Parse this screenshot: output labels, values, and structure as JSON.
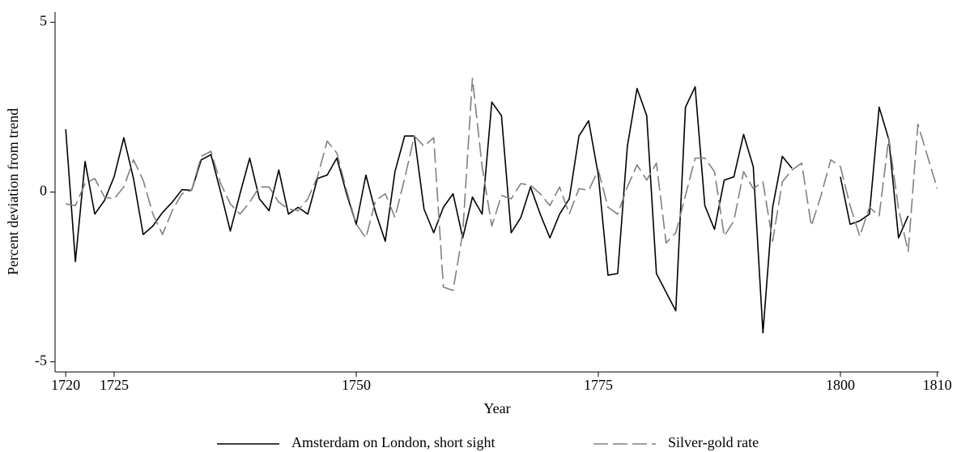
{
  "chart_data": {
    "type": "line",
    "y_label": "Percent deviation from trend",
    "x_label": "Year",
    "x": [
      1720,
      1721,
      1722,
      1723,
      1724,
      1725,
      1726,
      1727,
      1728,
      1729,
      1730,
      1731,
      1732,
      1733,
      1734,
      1735,
      1736,
      1737,
      1738,
      1739,
      1740,
      1741,
      1742,
      1743,
      1744,
      1745,
      1746,
      1747,
      1748,
      1749,
      1750,
      1751,
      1752,
      1753,
      1754,
      1755,
      1756,
      1757,
      1758,
      1759,
      1760,
      1761,
      1762,
      1763,
      1764,
      1765,
      1766,
      1767,
      1768,
      1769,
      1770,
      1771,
      1772,
      1773,
      1774,
      1775,
      1776,
      1777,
      1778,
      1779,
      1780,
      1781,
      1782,
      1783,
      1784,
      1785,
      1786,
      1787,
      1788,
      1789,
      1790,
      1791,
      1792,
      1793,
      1794,
      1795,
      1796,
      1797,
      1798,
      1799,
      1800,
      1801,
      1802,
      1803,
      1804,
      1805,
      1806,
      1807,
      1808,
      1809,
      1810
    ],
    "series": [
      {
        "name": "Amsterdam on London, short sight",
        "color": "#000000",
        "dash": false,
        "values": [
          1.85,
          -2.05,
          0.9,
          -0.65,
          -0.25,
          0.45,
          1.6,
          0.4,
          -1.25,
          -1.0,
          -0.6,
          -0.3,
          0.07,
          0.05,
          0.95,
          1.1,
          0,
          -1.15,
          -0.05,
          1.0,
          -0.2,
          -0.55,
          0.65,
          -0.65,
          -0.45,
          -0.65,
          0.4,
          0.5,
          1.0,
          -0.05,
          -0.95,
          0.5,
          -0.6,
          -1.45,
          0.6,
          1.65,
          1.65,
          -0.5,
          -1.2,
          -0.45,
          -0.05,
          -1.35,
          -0.15,
          -0.65,
          2.65,
          2.25,
          -1.2,
          -0.75,
          0.15,
          -0.65,
          -1.35,
          -0.65,
          -0.2,
          1.65,
          2.1,
          0.5,
          -2.45,
          -2.4,
          1.35,
          3.05,
          2.25,
          -2.4,
          -2.95,
          -3.5,
          2.5,
          3.1,
          -0.4,
          -1.1,
          0.35,
          0.45,
          1.7,
          0.75,
          -4.15,
          -0.45,
          1.05,
          0.7,
          null,
          null,
          null,
          null,
          0.45,
          -0.95,
          -0.85,
          -0.65,
          2.5,
          1.55,
          -1.35,
          -0.7,
          null,
          null,
          null
        ]
      },
      {
        "name": "Silver-gold rate",
        "color": "#808080",
        "dash": true,
        "values": [
          -0.35,
          -0.4,
          0.25,
          0.4,
          -0.15,
          -0.2,
          0.15,
          0.95,
          0.35,
          -0.65,
          -1.25,
          -0.55,
          -0.05,
          0.05,
          1.05,
          1.2,
          0.25,
          -0.35,
          -0.65,
          -0.3,
          0.15,
          0.15,
          -0.3,
          -0.5,
          -0.55,
          -0.2,
          0.45,
          1.5,
          1.15,
          0.05,
          -0.95,
          -1.35,
          -0.25,
          -0.05,
          -0.75,
          0.4,
          1.65,
          1.35,
          1.6,
          -2.8,
          -2.9,
          -1.2,
          3.35,
          0.75,
          -1.0,
          -0.1,
          -0.2,
          0.25,
          0.2,
          -0.05,
          -0.4,
          0.15,
          -0.65,
          0.1,
          0.05,
          0.65,
          -0.45,
          -0.65,
          0.15,
          0.8,
          0.35,
          0.85,
          -1.5,
          -1.2,
          -0.1,
          1.0,
          1.0,
          0.6,
          -1.3,
          -0.85,
          0.6,
          0.1,
          0.3,
          -1.45,
          0.3,
          0.65,
          0.85,
          -1.0,
          -0.1,
          0.95,
          0.75,
          -0.4,
          -1.3,
          -0.45,
          -0.7,
          1.6,
          -0.5,
          -1.75,
          2.0,
          1.05,
          0.1
        ]
      }
    ],
    "xlim": [
      1718.9,
      1810.2
    ],
    "ylim": [
      -5.3,
      5.3
    ],
    "xticks": [
      1720,
      1725,
      1750,
      1775,
      1800,
      1810
    ],
    "yticks": [
      -5,
      0,
      5
    ],
    "grid": false,
    "legend": "bottom"
  }
}
